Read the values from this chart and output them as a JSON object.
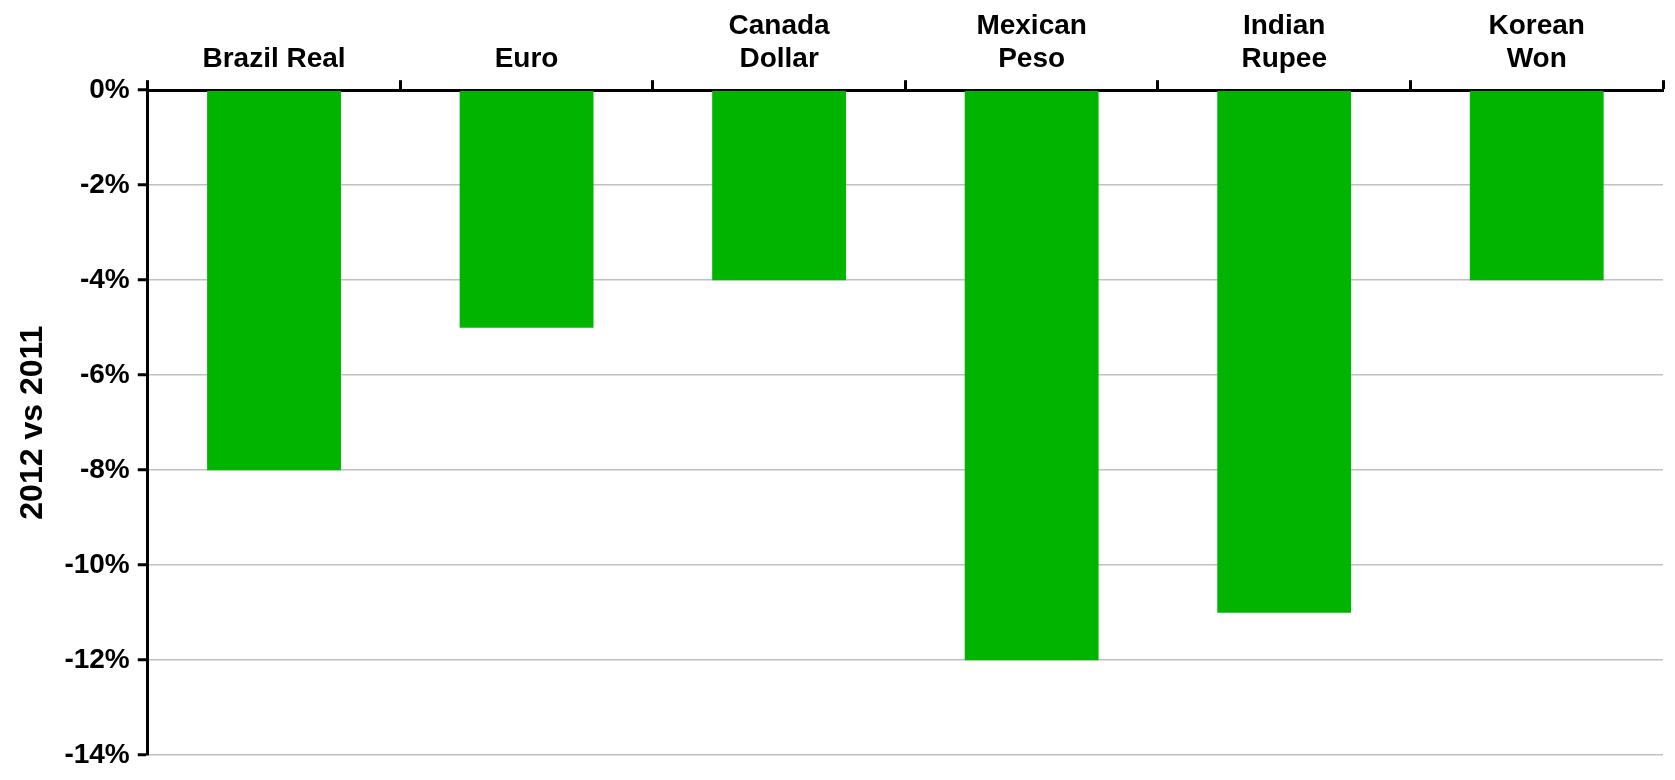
{
  "chart_data": {
    "type": "bar",
    "ylabel": "2012 vs 2011",
    "categories": [
      "Brazil Real",
      "Euro",
      "Canada\nDollar",
      "Mexican\nPeso",
      "Indian\nRupee",
      "Korean\nWon"
    ],
    "values": [
      -8,
      -5,
      -4,
      -12,
      -11,
      -4
    ],
    "color": "#00b400",
    "ylim": [
      -14,
      0
    ],
    "yticks": [
      {
        "value": -14,
        "label": "-14%"
      },
      {
        "value": -12,
        "label": "-12%"
      },
      {
        "value": -10,
        "label": "-10%"
      },
      {
        "value": -8,
        "label": "-8%"
      },
      {
        "value": -6,
        "label": "-6%"
      },
      {
        "value": -4,
        "label": "-4%"
      },
      {
        "value": -2,
        "label": "-2%"
      },
      {
        "value": 0,
        "label": "0%"
      }
    ],
    "grid": "y",
    "legend": false
  }
}
